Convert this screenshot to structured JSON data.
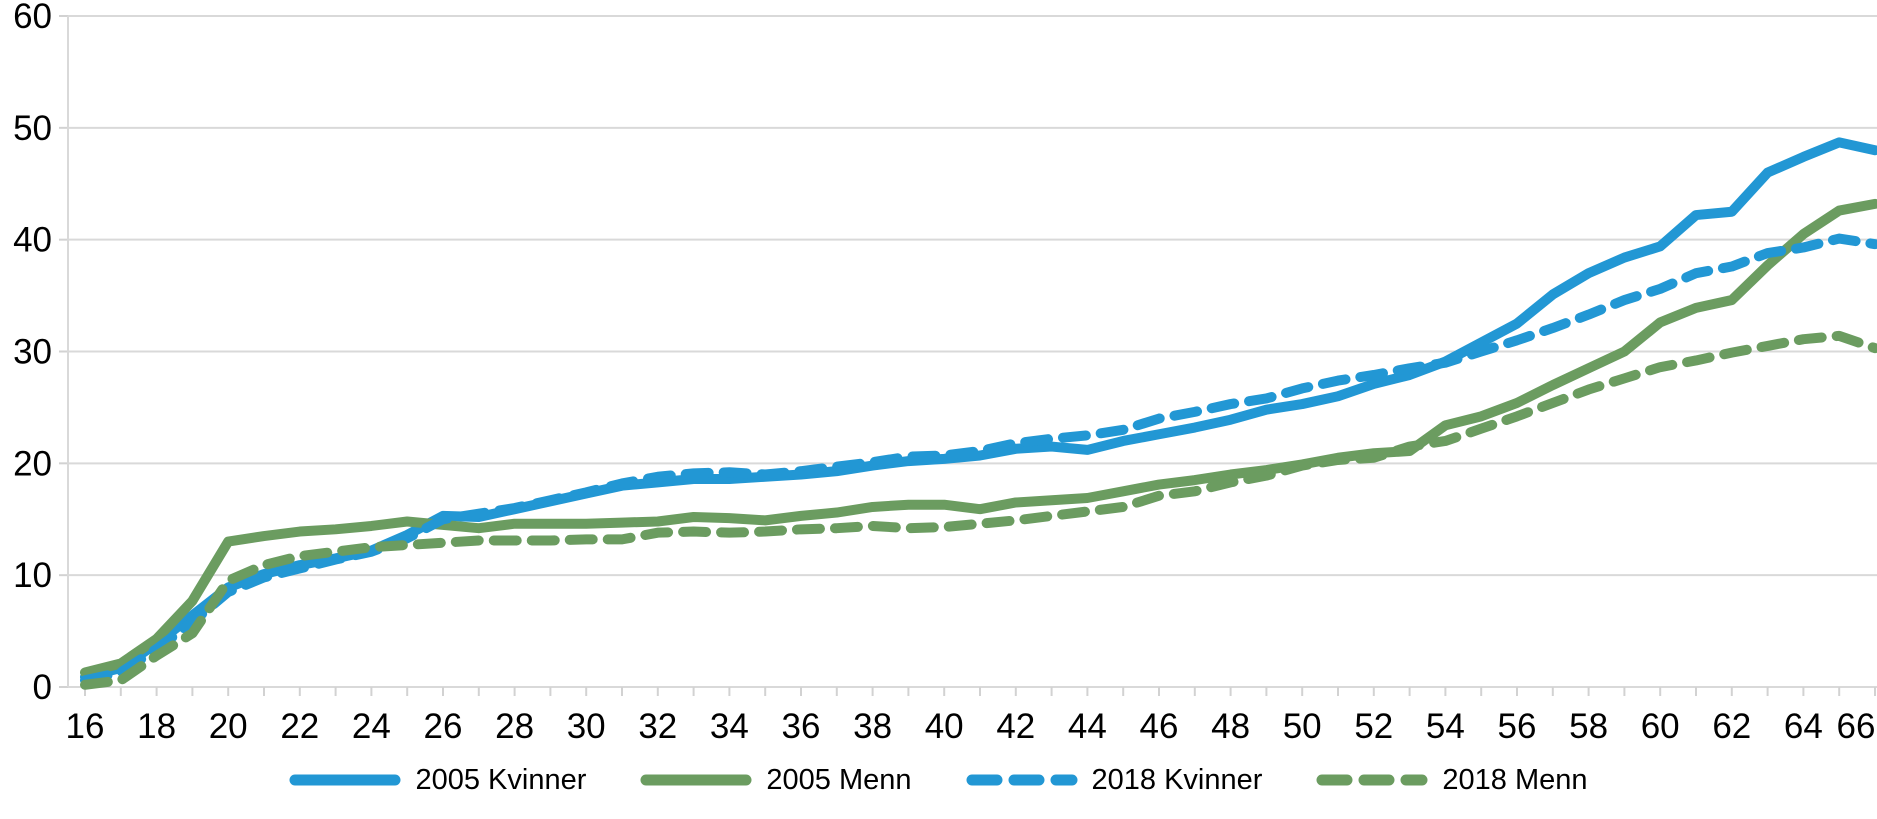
{
  "chart_data": {
    "type": "line",
    "title": "",
    "xlabel": "",
    "ylabel": "",
    "x": [
      16,
      17,
      18,
      19,
      20,
      21,
      22,
      23,
      24,
      25,
      26,
      27,
      28,
      29,
      30,
      31,
      32,
      33,
      34,
      35,
      36,
      37,
      38,
      39,
      40,
      41,
      42,
      43,
      44,
      45,
      46,
      47,
      48,
      49,
      50,
      51,
      52,
      53,
      54,
      55,
      56,
      57,
      58,
      59,
      60,
      61,
      62,
      63,
      64,
      65,
      66
    ],
    "x_tick_labels": [
      "16",
      "18",
      "20",
      "22",
      "24",
      "26",
      "28",
      "30",
      "32",
      "34",
      "36",
      "38",
      "40",
      "42",
      "44",
      "46",
      "48",
      "50",
      "52",
      "54",
      "56",
      "58",
      "60",
      "62",
      "64",
      "66"
    ],
    "y_ticks": [
      0,
      10,
      20,
      30,
      40,
      50,
      60
    ],
    "ylim": [
      0,
      60
    ],
    "xlim": [
      16,
      66
    ],
    "grid": "horizontal",
    "legend_position": "bottom",
    "colors": {
      "kvinner": "#2297d4",
      "menn": "#6b9c60",
      "grid": "#d9d9d9",
      "tick": "#d2d2d2",
      "text": "#000000"
    },
    "series": [
      {
        "name": "2005 Kvinner",
        "style": "solid",
        "color_key": "kvinner",
        "values": [
          0.9,
          1.7,
          3.9,
          6.4,
          8.9,
          10.1,
          10.9,
          11.5,
          12.2,
          13.6,
          15.3,
          15.2,
          15.9,
          16.6,
          17.3,
          18.0,
          18.3,
          18.6,
          18.6,
          18.8,
          19.0,
          19.3,
          19.8,
          20.2,
          20.4,
          20.7,
          21.3,
          21.5,
          21.2,
          22.0,
          22.6,
          23.2,
          23.9,
          24.8,
          25.3,
          26.0,
          27.1,
          27.9,
          29.1,
          30.8,
          32.5,
          35.1,
          37.0,
          38.4,
          39.4,
          42.2,
          42.5,
          46.0,
          47.4,
          48.7,
          48.0
        ]
      },
      {
        "name": "2005 Menn",
        "style": "solid",
        "color_key": "menn",
        "values": [
          1.3,
          2.1,
          4.3,
          7.7,
          13.0,
          13.5,
          13.9,
          14.1,
          14.4,
          14.8,
          14.5,
          14.2,
          14.6,
          14.6,
          14.6,
          14.7,
          14.8,
          15.2,
          15.1,
          14.9,
          15.3,
          15.6,
          16.1,
          16.3,
          16.3,
          15.9,
          16.5,
          16.7,
          16.9,
          17.5,
          18.1,
          18.5,
          19.0,
          19.4,
          19.9,
          20.5,
          20.9,
          21.1,
          23.4,
          24.2,
          25.4,
          27.0,
          28.5,
          30.0,
          32.6,
          33.9,
          34.6,
          37.7,
          40.5,
          42.6,
          43.2
        ]
      },
      {
        "name": "2018 Kvinner",
        "style": "dashed",
        "color_key": "kvinner",
        "values": [
          0.6,
          1.3,
          3.4,
          5.8,
          8.5,
          9.8,
          10.6,
          11.4,
          12.1,
          13.3,
          15.0,
          15.5,
          16.0,
          16.7,
          17.4,
          18.2,
          18.8,
          19.1,
          19.2,
          19.0,
          19.3,
          19.7,
          20.1,
          20.6,
          20.7,
          21.1,
          21.8,
          22.2,
          22.5,
          23.0,
          24.0,
          24.6,
          25.3,
          25.8,
          26.7,
          27.4,
          27.9,
          28.5,
          29.0,
          30.0,
          31.0,
          32.1,
          33.3,
          34.6,
          35.6,
          37.0,
          37.6,
          38.8,
          39.3,
          40.1,
          39.6
        ]
      },
      {
        "name": "2018 Menn",
        "style": "dashed",
        "color_key": "menn",
        "values": [
          0.2,
          0.6,
          2.8,
          4.8,
          9.5,
          10.9,
          11.7,
          12.1,
          12.5,
          12.7,
          12.9,
          13.1,
          13.1,
          13.1,
          13.2,
          13.2,
          13.8,
          13.9,
          13.8,
          13.9,
          14.1,
          14.2,
          14.4,
          14.2,
          14.3,
          14.6,
          14.9,
          15.3,
          15.7,
          16.1,
          17.1,
          17.5,
          18.3,
          18.9,
          19.8,
          20.3,
          20.5,
          21.5,
          22.0,
          23.1,
          24.2,
          25.4,
          26.6,
          27.6,
          28.6,
          29.2,
          29.9,
          30.5,
          31.1,
          31.4,
          30.3
        ]
      }
    ]
  },
  "legend": {
    "items": [
      {
        "label": "2005 Kvinner"
      },
      {
        "label": "2005 Menn"
      },
      {
        "label": "2018 Kvinner"
      },
      {
        "label": "2018 Menn"
      }
    ]
  }
}
